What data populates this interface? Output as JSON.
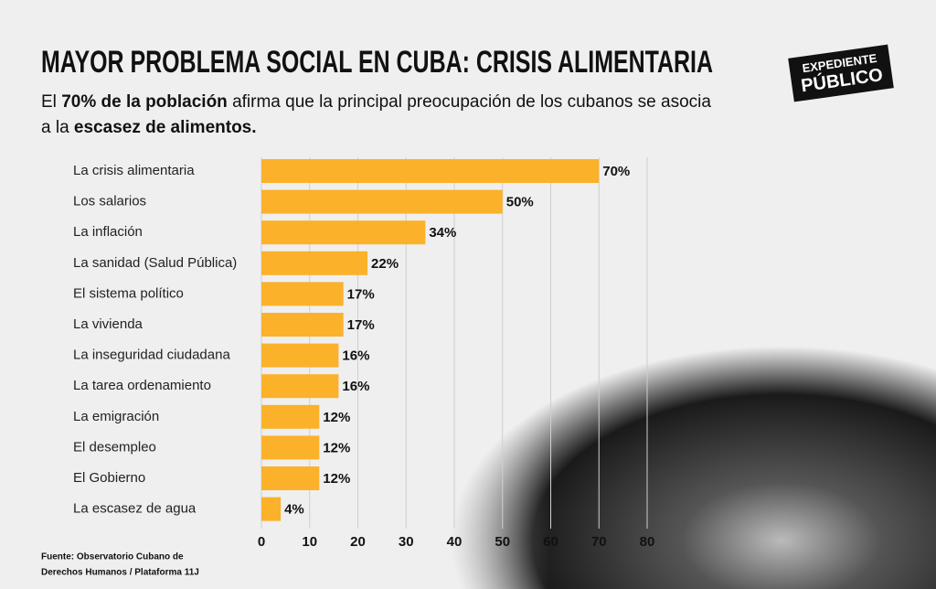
{
  "chart_data": {
    "type": "hbar",
    "title": "MAYOR PROBLEMA SOCIAL EN CUBA: CRISIS ALIMENTARIA",
    "subtitle": [
      [
        {
          "text": "El ",
          "bold": false
        },
        {
          "text": "70% de la población",
          "bold": true
        },
        {
          "text": " afirma que la principal preocupación de los cubanos se asocia",
          "bold": false
        }
      ],
      [
        {
          "text": "a la ",
          "bold": false
        },
        {
          "text": "escasez de alimentos.",
          "bold": true
        }
      ]
    ],
    "categories": [
      "La crisis alimentaria",
      "Los salarios",
      "La inflación",
      "La sanidad (Salud Pública)",
      "El sistema político",
      "La vivienda",
      "La inseguridad ciudadana",
      "La tarea ordenamiento",
      "La emigración",
      "El desempleo",
      "El Gobierno",
      "La escasez de agua"
    ],
    "values": [
      70,
      50,
      34,
      22,
      17,
      17,
      16,
      16,
      12,
      12,
      12,
      4
    ],
    "value_labels": [
      "70%",
      "50%",
      "34%",
      "22%",
      "17%",
      "17%",
      "16%",
      "16%",
      "12%",
      "12%",
      "12%",
      "4%"
    ],
    "color": "#fbb12a",
    "xlim": [
      0,
      80
    ],
    "xticks": [
      0,
      10,
      20,
      30,
      40,
      50,
      60,
      70,
      80
    ],
    "grid": true,
    "source": [
      "Fuente: Observatorio Cubano de",
      "Derechos Humanos / Plataforma 11J"
    ],
    "logo": [
      "EXPEDIENTE",
      "PÚBLICO"
    ]
  }
}
